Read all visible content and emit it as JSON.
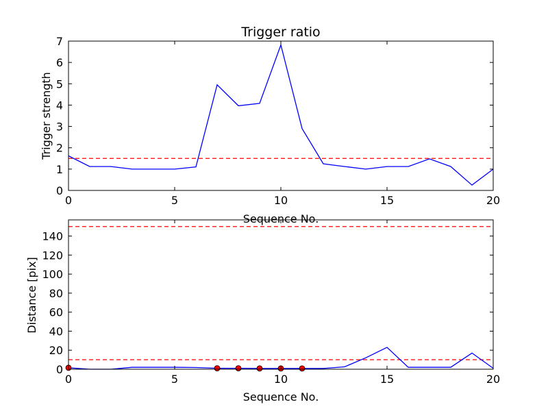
{
  "chart_data": [
    {
      "type": "line",
      "title": "Trigger ratio",
      "xlabel": "Sequence No.",
      "ylabel": "Trigger strength",
      "xlim": [
        0,
        20
      ],
      "ylim": [
        0,
        7
      ],
      "xticks": [
        0,
        5,
        10,
        15,
        20
      ],
      "yticks": [
        0,
        1,
        2,
        3,
        4,
        5,
        6,
        7
      ],
      "series": [
        {
          "color": "#0000ff",
          "x": [
            0,
            1,
            2,
            3,
            4,
            5,
            6,
            7,
            8,
            9,
            10,
            11,
            12,
            13,
            14,
            15,
            16,
            17,
            18,
            19,
            20
          ],
          "values": [
            1.62,
            1.12,
            1.12,
            1.0,
            1.0,
            1.0,
            1.1,
            4.95,
            3.97,
            4.08,
            6.82,
            2.9,
            1.25,
            1.12,
            1.0,
            1.12,
            1.12,
            1.48,
            1.12,
            0.25,
            1.0
          ]
        }
      ],
      "threshold_lines": [
        {
          "y": 1.5,
          "color": "#ff0000",
          "style": "dashed"
        }
      ],
      "grid": false
    },
    {
      "type": "line",
      "title": "",
      "xlabel": "Sequence No.",
      "ylabel": "Distance [pix]",
      "xlim": [
        0,
        20
      ],
      "ylim": [
        0,
        157
      ],
      "xticks": [
        0,
        5,
        10,
        15,
        20
      ],
      "yticks": [
        0,
        20,
        40,
        60,
        80,
        100,
        120,
        140
      ],
      "series": [
        {
          "color": "#0000ff",
          "x": [
            0,
            1,
            2,
            3,
            4,
            5,
            6,
            7,
            8,
            9,
            10,
            11,
            12,
            13,
            14,
            15,
            16,
            17,
            18,
            19,
            20
          ],
          "values": [
            1.5,
            0,
            0,
            2,
            2,
            2,
            1.8,
            1,
            1,
            0.8,
            0.8,
            0.8,
            0.8,
            2.5,
            12,
            23,
            2,
            2,
            2,
            17,
            1
          ]
        }
      ],
      "markers": {
        "color": "#ff0000",
        "x": [
          0,
          7,
          8,
          9,
          10,
          11
        ],
        "values": [
          1.5,
          1,
          1,
          0.8,
          0.8,
          0.8
        ]
      },
      "threshold_lines": [
        {
          "y": 150,
          "color": "#ff0000",
          "style": "dashed"
        },
        {
          "y": 10,
          "color": "#ff0000",
          "style": "dashed"
        }
      ],
      "grid": false
    }
  ]
}
